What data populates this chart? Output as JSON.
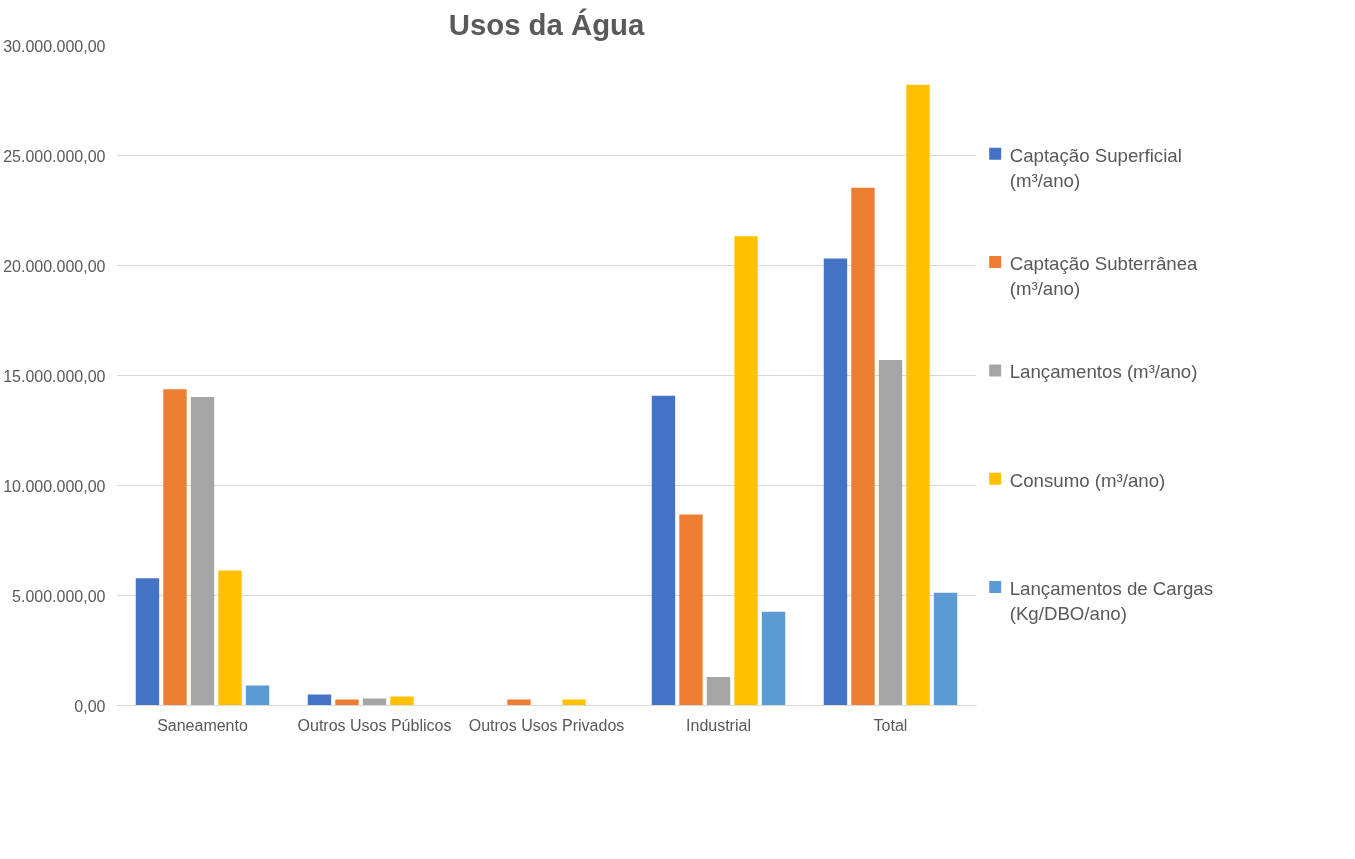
{
  "chart_data": {
    "type": "bar",
    "title": "Usos da Água",
    "categories": [
      "Saneamento",
      "Outros Usos Públicos",
      "Outros Usos Privados",
      "Industrial",
      "Total"
    ],
    "series": [
      {
        "name": "Captação Superficial (m³/ano)",
        "color": "#4472c4",
        "values": [
          5780000,
          500000,
          0,
          14080000,
          20320000
        ]
      },
      {
        "name": "Captação Subterrânea (m³/ano)",
        "color": "#ed7d31",
        "values": [
          14380000,
          270000,
          270000,
          8680000,
          23530000
        ]
      },
      {
        "name": "Lançamentos (m³/ano)",
        "color": "#a5a5a5",
        "values": [
          14020000,
          320000,
          0,
          1300000,
          15700000
        ]
      },
      {
        "name": "Consumo (m³/ano)",
        "color": "#ffc000",
        "values": [
          6140000,
          410000,
          270000,
          21330000,
          28220000
        ]
      },
      {
        "name": "Lançamentos de Cargas  (Kg/DBO/ano)",
        "color": "#5b9bd5",
        "values": [
          910000,
          0,
          0,
          4260000,
          5120000
        ]
      }
    ],
    "ylim": [
      0,
      30000000
    ],
    "yticks": [
      {
        "value": 0,
        "label": "0,00"
      },
      {
        "value": 5000000,
        "label": "5.000.000,00"
      },
      {
        "value": 10000000,
        "label": "10.000.000,00"
      },
      {
        "value": 15000000,
        "label": "15.000.000,00"
      },
      {
        "value": 20000000,
        "label": "20.000.000,00"
      },
      {
        "value": 25000000,
        "label": "25.000.000,00"
      },
      {
        "value": 30000000,
        "label": "30.000.000,00"
      }
    ],
    "grid": "y",
    "legend": "right"
  }
}
